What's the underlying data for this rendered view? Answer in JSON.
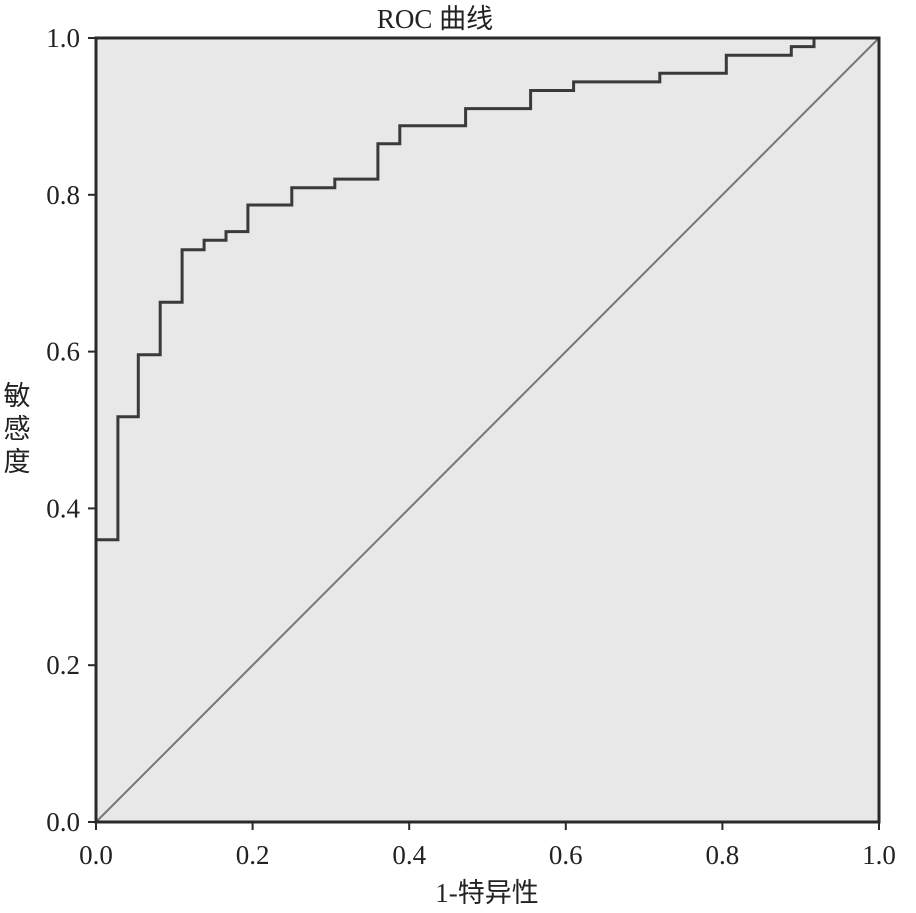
{
  "chart_data": {
    "type": "line",
    "title": "ROC 曲线",
    "xlabel": "1-特异性",
    "ylabel": "敏感度",
    "xlim": [
      0.0,
      1.0
    ],
    "ylim": [
      0.0,
      1.0
    ],
    "xticks": [
      "0.0",
      "0.2",
      "0.4",
      "0.6",
      "0.8",
      "1.0"
    ],
    "yticks": [
      "0.0",
      "0.2",
      "0.4",
      "0.6",
      "0.8",
      "1.0"
    ],
    "grid": false,
    "colors": {
      "plot_background": "#e8e8e8",
      "roc_line": "#3a3a3a",
      "reference_line": "#777777"
    },
    "series": [
      {
        "style": "step",
        "x": [
          0.0,
          0.0,
          0.028,
          0.028,
          0.054,
          0.054,
          0.082,
          0.082,
          0.11,
          0.11,
          0.138,
          0.138,
          0.166,
          0.166,
          0.194,
          0.194,
          0.25,
          0.25,
          0.305,
          0.305,
          0.36,
          0.36,
          0.388,
          0.388,
          0.472,
          0.472,
          0.555,
          0.555,
          0.61,
          0.61,
          0.72,
          0.72,
          0.805,
          0.805,
          0.888,
          0.888,
          0.917,
          0.917,
          1.0
        ],
        "y": [
          0.0,
          0.36,
          0.36,
          0.517,
          0.517,
          0.596,
          0.596,
          0.663,
          0.663,
          0.73,
          0.73,
          0.742,
          0.742,
          0.753,
          0.753,
          0.787,
          0.787,
          0.809,
          0.809,
          0.82,
          0.82,
          0.865,
          0.865,
          0.888,
          0.888,
          0.91,
          0.91,
          0.933,
          0.933,
          0.944,
          0.944,
          0.955,
          0.955,
          0.978,
          0.978,
          0.989,
          0.989,
          1.0,
          1.0
        ]
      },
      {
        "style": "reference",
        "x": [
          0.0,
          1.0
        ],
        "y": [
          0.0,
          1.0
        ]
      }
    ]
  }
}
